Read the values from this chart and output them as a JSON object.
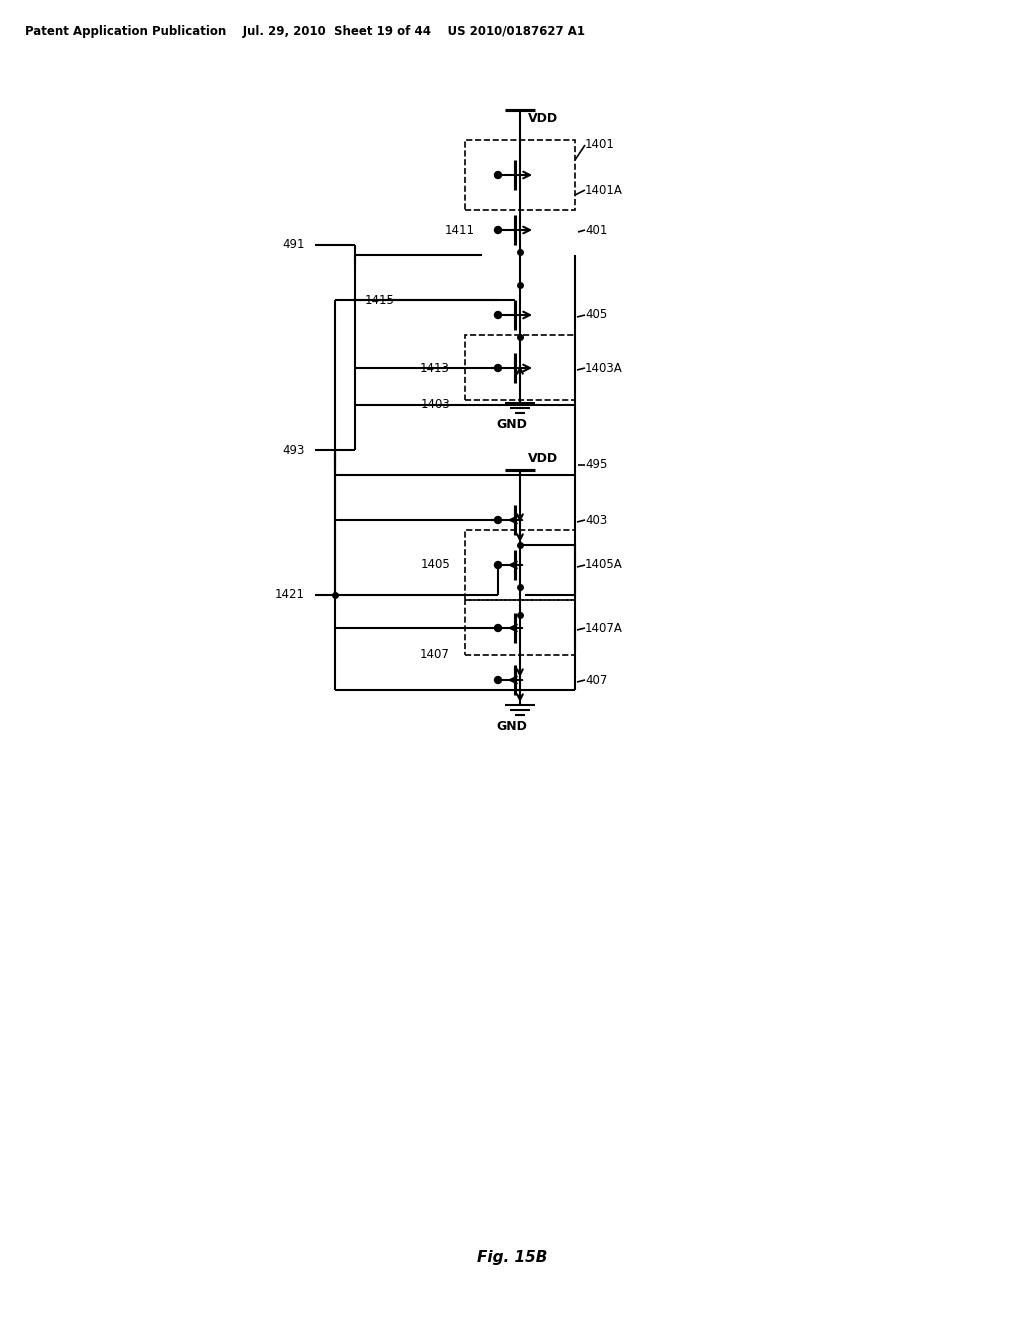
{
  "bg_color": "#ffffff",
  "line_color": "#000000",
  "dashed_color": "#000000",
  "header_text": "Patent Application Publication    Jul. 29, 2010  Sheet 19 of 44    US 2010/0187627 A1",
  "figure_label": "Fig. 15B",
  "labels": {
    "VDD_top": "VDD",
    "GND_mid": "GND",
    "VDD_mid": "VDD",
    "GND_bot": "GND",
    "n1401": "1401",
    "n1401A": "1401A",
    "n491": "491",
    "n1411": "1411",
    "n401": "401",
    "n1415": "1415",
    "n405": "405",
    "n1413": "1413",
    "n1403A": "1403A",
    "n1403": "1403",
    "n493": "493",
    "n495": "495",
    "n403": "403",
    "n1405": "1405",
    "n1405A": "1405A",
    "n1421": "1421",
    "n1407A": "1407A",
    "n1407": "1407",
    "n407": "407"
  }
}
